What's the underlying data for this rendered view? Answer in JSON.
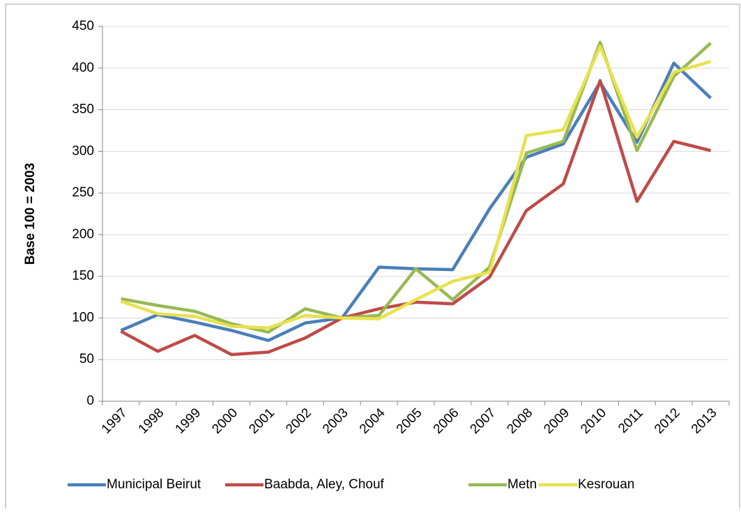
{
  "chart_data": {
    "type": "line",
    "categories": [
      "1997",
      "1998",
      "1999",
      "2000",
      "2001",
      "2002",
      "2003",
      "2004",
      "2005",
      "2006",
      "2007",
      "2008",
      "2009",
      "2010",
      "2011",
      "2012",
      "2013"
    ],
    "y_label": "Base 100 = 2003",
    "ylim": [
      0,
      450
    ],
    "yticks": [
      0,
      50,
      100,
      150,
      200,
      250,
      300,
      350,
      400,
      450
    ],
    "grid": true,
    "legend": "bottom",
    "series": [
      {
        "name": "Municipal Beirut",
        "color": "#4a7ebb",
        "values": [
          85,
          104,
          95,
          85,
          73,
          94,
          100,
          161,
          159,
          158,
          231,
          293,
          309,
          383,
          311,
          406,
          364
        ]
      },
      {
        "name": "Baabda, Aley, Chouf",
        "color": "#be4b48",
        "values": [
          84,
          60,
          79,
          56,
          59,
          76,
          100,
          111,
          119,
          117,
          149,
          229,
          261,
          385,
          240,
          312,
          301
        ]
      },
      {
        "name": "Metn",
        "color": "#98b954",
        "values": [
          123,
          115,
          108,
          93,
          83,
          111,
          100,
          103,
          159,
          122,
          161,
          298,
          312,
          431,
          301,
          390,
          430
        ]
      },
      {
        "name": "Kesrouan",
        "color": "#e8e14f",
        "values": [
          120,
          105,
          102,
          90,
          88,
          103,
          100,
          99,
          122,
          144,
          155,
          319,
          326,
          426,
          317,
          395,
          408
        ]
      }
    ]
  }
}
